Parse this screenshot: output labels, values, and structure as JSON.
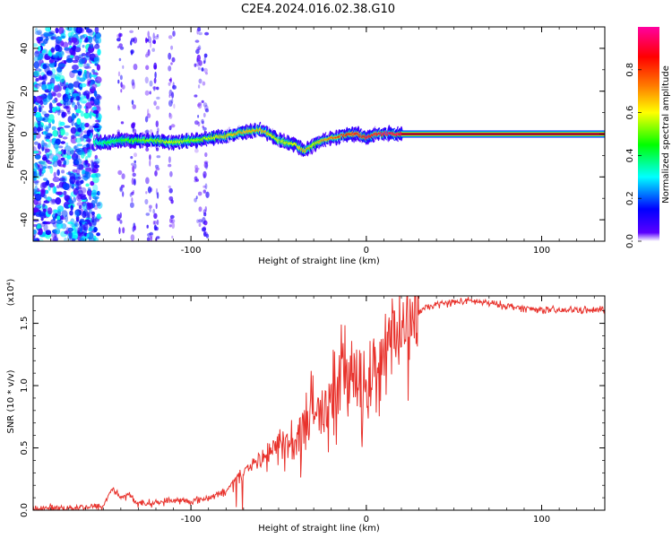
{
  "title": "C2E4.2024.016.02.38.G10",
  "chart_data": [
    {
      "type": "heatmap",
      "xlabel": "Height of straight line (km)",
      "ylabel": "Frequency (Hz)",
      "xlim": [
        -190,
        136
      ],
      "ylim": [
        -50,
        50
      ],
      "xticks": [
        -100,
        0,
        100
      ],
      "yticks": [
        -40,
        -20,
        0,
        20,
        40
      ],
      "colorbar": {
        "label": "Normalized spectral amplitude",
        "range": [
          0,
          1
        ],
        "ticks": [
          "0.0",
          "0.2",
          "0.4",
          "0.6",
          "0.8"
        ],
        "colors": [
          "#ffffff",
          "#5a00ff",
          "#0000ff",
          "#00ffff",
          "#00ff00",
          "#ffff00",
          "#ff8000",
          "#ff0000",
          "#ff00a0"
        ]
      },
      "ridge": {
        "x": [
          -155,
          -150,
          -140,
          -130,
          -120,
          -110,
          -100,
          -90,
          -80,
          -70,
          -60,
          -55,
          -50,
          -45,
          -40,
          -35,
          -30,
          -25,
          -20,
          -15,
          -10,
          -5,
          0,
          5,
          10,
          15,
          20,
          136
        ],
        "frequency": [
          -4,
          -4,
          -3,
          -3,
          -3,
          -4,
          -3,
          -2,
          -1,
          1,
          2,
          0,
          -3,
          -4,
          -5,
          -8,
          -5,
          -3,
          -2,
          -1,
          0,
          0,
          -2,
          0,
          0,
          0,
          0,
          0
        ],
        "amplitude": [
          0.35,
          0.4,
          0.45,
          0.5,
          0.55,
          0.6,
          0.55,
          0.6,
          0.65,
          0.7,
          0.7,
          0.65,
          0.6,
          0.6,
          0.65,
          0.7,
          0.6,
          0.7,
          0.75,
          0.8,
          0.85,
          0.85,
          0.9,
          0.9,
          0.95,
          0.95,
          0.95,
          0.95
        ]
      },
      "noise_region": {
        "x_range": [
          -190,
          -152
        ],
        "frequency_range": [
          -50,
          50
        ],
        "amplitude": 0.3
      }
    },
    {
      "type": "line",
      "xlabel": "Height of straight line (km)",
      "ylabel": "SNR (10 * v/v)",
      "y_multiplier": "(x10⁴)",
      "xlim": [
        -190,
        136
      ],
      "ylim": [
        0,
        1.72
      ],
      "xticks": [
        -100,
        0,
        100
      ],
      "yticks": [
        "0.0",
        "0.5",
        "1.0",
        "1.5"
      ],
      "color": "#e8322c",
      "series": [
        {
          "x": [
            -190,
            -170,
            -150,
            -145,
            -140,
            -135,
            -130,
            -120,
            -110,
            -100,
            -90,
            -80,
            -75,
            -70,
            -65,
            -60,
            -55,
            -50,
            -45,
            -40,
            -35,
            -30,
            -25,
            -20,
            -15,
            -10,
            -5,
            0,
            5,
            10,
            15,
            20,
            25,
            30,
            40,
            50,
            60,
            70,
            80,
            90,
            100,
            110,
            120,
            130,
            136
          ],
          "y": [
            0.01,
            0.02,
            0.03,
            0.18,
            0.1,
            0.12,
            0.05,
            0.06,
            0.08,
            0.07,
            0.1,
            0.15,
            0.25,
            0.32,
            0.35,
            0.4,
            0.45,
            0.5,
            0.62,
            0.55,
            0.72,
            0.82,
            0.78,
            0.95,
            1.12,
            1.2,
            0.92,
            0.97,
            1.1,
            1.3,
            1.45,
            1.43,
            1.52,
            1.6,
            1.65,
            1.67,
            1.68,
            1.66,
            1.64,
            1.62,
            1.61,
            1.6,
            1.61,
            1.6,
            1.62
          ]
        }
      ]
    }
  ]
}
